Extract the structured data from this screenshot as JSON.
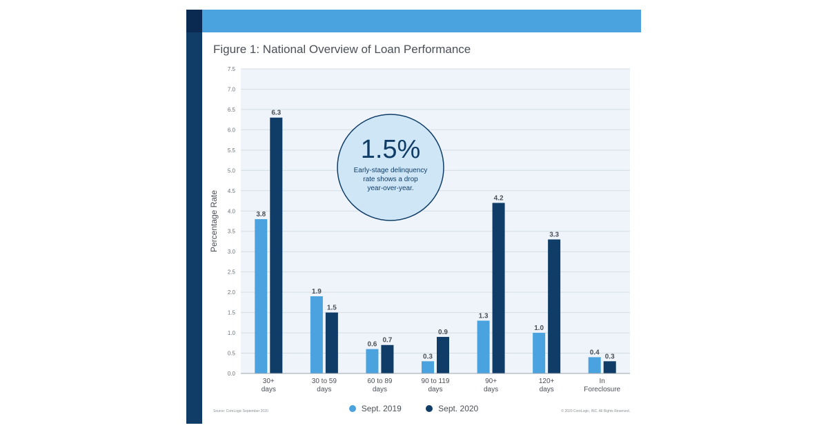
{
  "header": {
    "title": "Figure 1: National Overview of Loan Performance",
    "source": "Source: CoreLogic September 2020",
    "copyright": "© 2020 CoreLogic, INC. All Rights Reserved."
  },
  "callout": {
    "value": "1.5%",
    "line1": "Early-stage delinquency",
    "line2": "rate shows a drop",
    "line3": "year-over-year."
  },
  "colors": {
    "series_2019": "#4aa3df",
    "series_2020": "#0f3d67",
    "plot_bg": "#eef4fa",
    "grid": "#d4dde6",
    "circle_fill": "#cfe6f7",
    "circle_stroke": "#0f3d67"
  },
  "chart_data": {
    "type": "bar",
    "title": "Figure 1: National Overview of Loan Performance",
    "xlabel": "",
    "ylabel": "Percentage Rate",
    "ylim": [
      0,
      7.5
    ],
    "yticks": [
      "0.0",
      "0.5",
      "1.0",
      "1.5",
      "2.0",
      "2.5",
      "3.0",
      "3.5",
      "4.0",
      "4.5",
      "5.0",
      "5.5",
      "6.0",
      "6.5",
      "7.0",
      "7.5"
    ],
    "grid": true,
    "legend_position": "bottom",
    "categories": [
      [
        "30+",
        "days"
      ],
      [
        "30 to 59",
        "days"
      ],
      [
        "60 to 89",
        "days"
      ],
      [
        "90 to 119",
        "days"
      ],
      [
        "90+",
        "days"
      ],
      [
        "120+",
        "days"
      ],
      [
        "In",
        "Foreclosure"
      ]
    ],
    "series": [
      {
        "name": "Sept. 2019",
        "values": [
          3.8,
          1.9,
          0.6,
          0.3,
          1.3,
          1.0,
          0.4
        ],
        "labels": [
          "3.8",
          "1.9",
          "0.6",
          "0.3",
          "1.3",
          "1.0",
          "0.4"
        ]
      },
      {
        "name": "Sept. 2020",
        "values": [
          6.3,
          1.5,
          0.7,
          0.9,
          4.2,
          3.3,
          0.3
        ],
        "labels": [
          "6.3",
          "1.5",
          "0.7",
          "0.9",
          "4.2",
          "3.3",
          "0.3"
        ]
      }
    ]
  }
}
